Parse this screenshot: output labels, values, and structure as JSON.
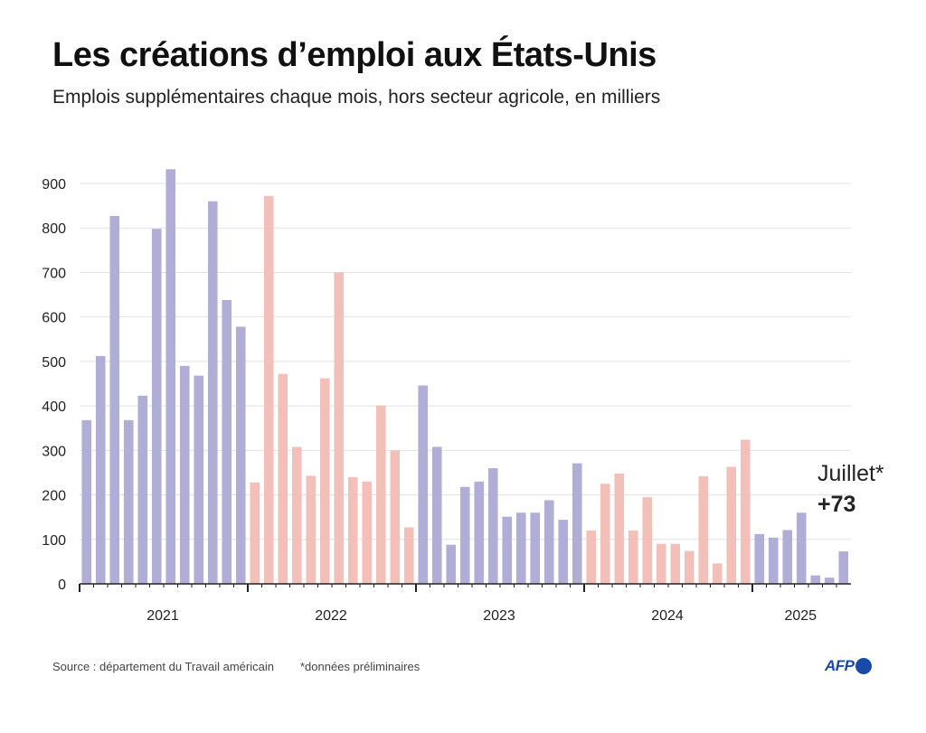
{
  "header": {
    "title": "Les créations d’emploi aux États-Unis",
    "subtitle": "Emplois supplémentaires chaque mois, hors secteur agricole, en milliers"
  },
  "footer": {
    "source": "Source : département du Travail américain",
    "note": "*données préliminaires",
    "logo": "AFP"
  },
  "colors": {
    "purple": "#b0aed6",
    "pink": "#f2c0b8",
    "grid": "#e3e3e3",
    "axis": "#222222"
  },
  "chart_data": {
    "type": "bar",
    "ylim": [
      0,
      950
    ],
    "yticks": [
      0,
      100,
      200,
      300,
      400,
      500,
      600,
      700,
      800,
      900
    ],
    "grid": true,
    "annotation": {
      "label": "Juillet*",
      "value": "+73"
    },
    "years": [
      {
        "label": "2021",
        "color": "purple",
        "values": [
          368,
          512,
          827,
          368,
          423,
          798,
          932,
          490,
          468,
          860,
          638,
          578
        ]
      },
      {
        "label": "2022",
        "color": "pink",
        "values": [
          228,
          872,
          472,
          308,
          243,
          462,
          700,
          240,
          230,
          401,
          300,
          127
        ]
      },
      {
        "label": "2023",
        "color": "purple",
        "values": [
          446,
          308,
          88,
          218,
          230,
          260,
          151,
          160,
          160,
          188,
          144,
          271
        ]
      },
      {
        "label": "2024",
        "color": "pink",
        "values": [
          120,
          225,
          248,
          120,
          195,
          90,
          90,
          74,
          242,
          46,
          263,
          324
        ]
      },
      {
        "label": "2025",
        "color": "purple",
        "values": [
          112,
          104,
          121,
          160,
          19,
          14,
          73
        ]
      }
    ]
  }
}
